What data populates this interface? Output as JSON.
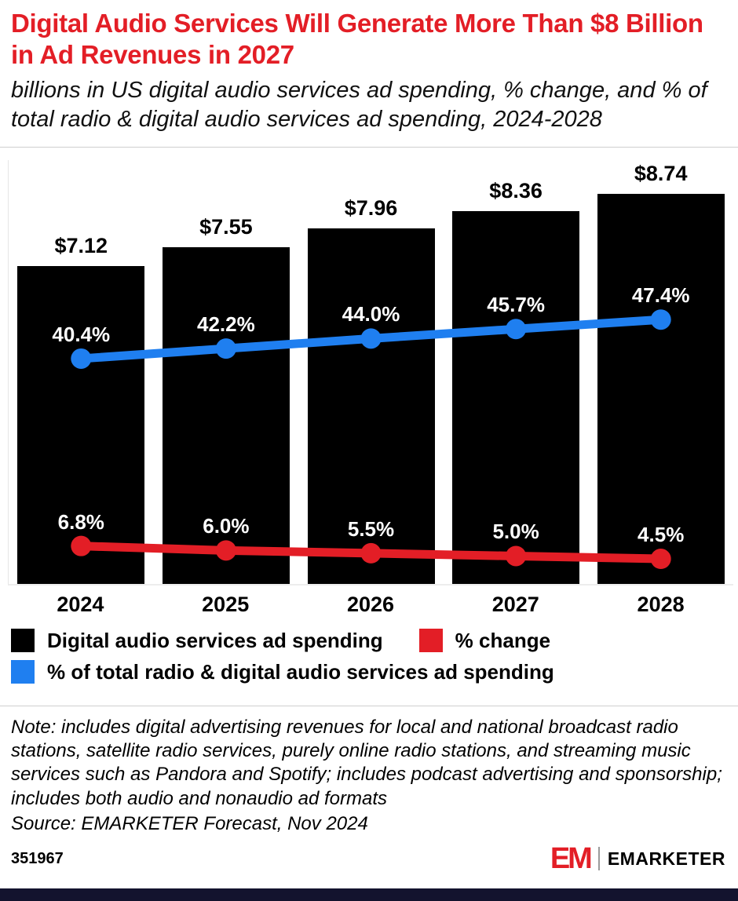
{
  "colors": {
    "red": "#e31e26",
    "blue": "#1f7ff0",
    "black": "#000000",
    "dark_bar": "#13132e"
  },
  "chart_data": {
    "type": "bar",
    "title": "Digital Audio Services Will Generate More Than $8 Billion in Ad Revenues in 2027",
    "subtitle": "billions in US digital audio services ad spending, % change, and % of total radio & digital audio services ad spending, 2024-2028",
    "categories": [
      "2024",
      "2025",
      "2026",
      "2027",
      "2028"
    ],
    "series": [
      {
        "name": "Digital audio services ad spending",
        "type": "bar",
        "color": "#000000",
        "values": [
          7.12,
          7.55,
          7.96,
          8.36,
          8.74
        ],
        "labels": [
          "$7.12",
          "$7.55",
          "$7.96",
          "$8.36",
          "$8.74"
        ]
      },
      {
        "name": "% of total radio & digital audio services ad spending",
        "type": "line",
        "color": "#1f7ff0",
        "values": [
          40.4,
          42.2,
          44.0,
          45.7,
          47.4
        ],
        "labels": [
          "40.4%",
          "42.2%",
          "44.0%",
          "45.7%",
          "47.4%"
        ]
      },
      {
        "name": "% change",
        "type": "line",
        "color": "#e31e26",
        "values": [
          6.8,
          6.0,
          5.5,
          5.0,
          4.5
        ],
        "labels": [
          "6.8%",
          "6.0%",
          "5.5%",
          "5.0%",
          "4.5%"
        ]
      }
    ],
    "bar_axis_max": 9.5,
    "pct_axis_max": 76,
    "grid": false,
    "legend_position": "bottom"
  },
  "legend": [
    {
      "label": "Digital audio services ad spending",
      "color": "#000000"
    },
    {
      "label": "% change",
      "color": "#e31e26"
    },
    {
      "label": "% of total radio & digital audio services ad spending",
      "color": "#1f7ff0"
    }
  ],
  "note": "Note: includes digital advertising revenues for local and national broadcast radio stations, satellite radio services, purely online radio stations, and streaming music services such as Pandora and Spotify; includes podcast advertising and sponsorship; includes both audio and nonaudio ad formats",
  "source": "Source: EMARKETER Forecast, Nov 2024",
  "footer": {
    "chart_id": "351967",
    "brand_mark": "EM",
    "brand_name": "EMARKETER"
  }
}
